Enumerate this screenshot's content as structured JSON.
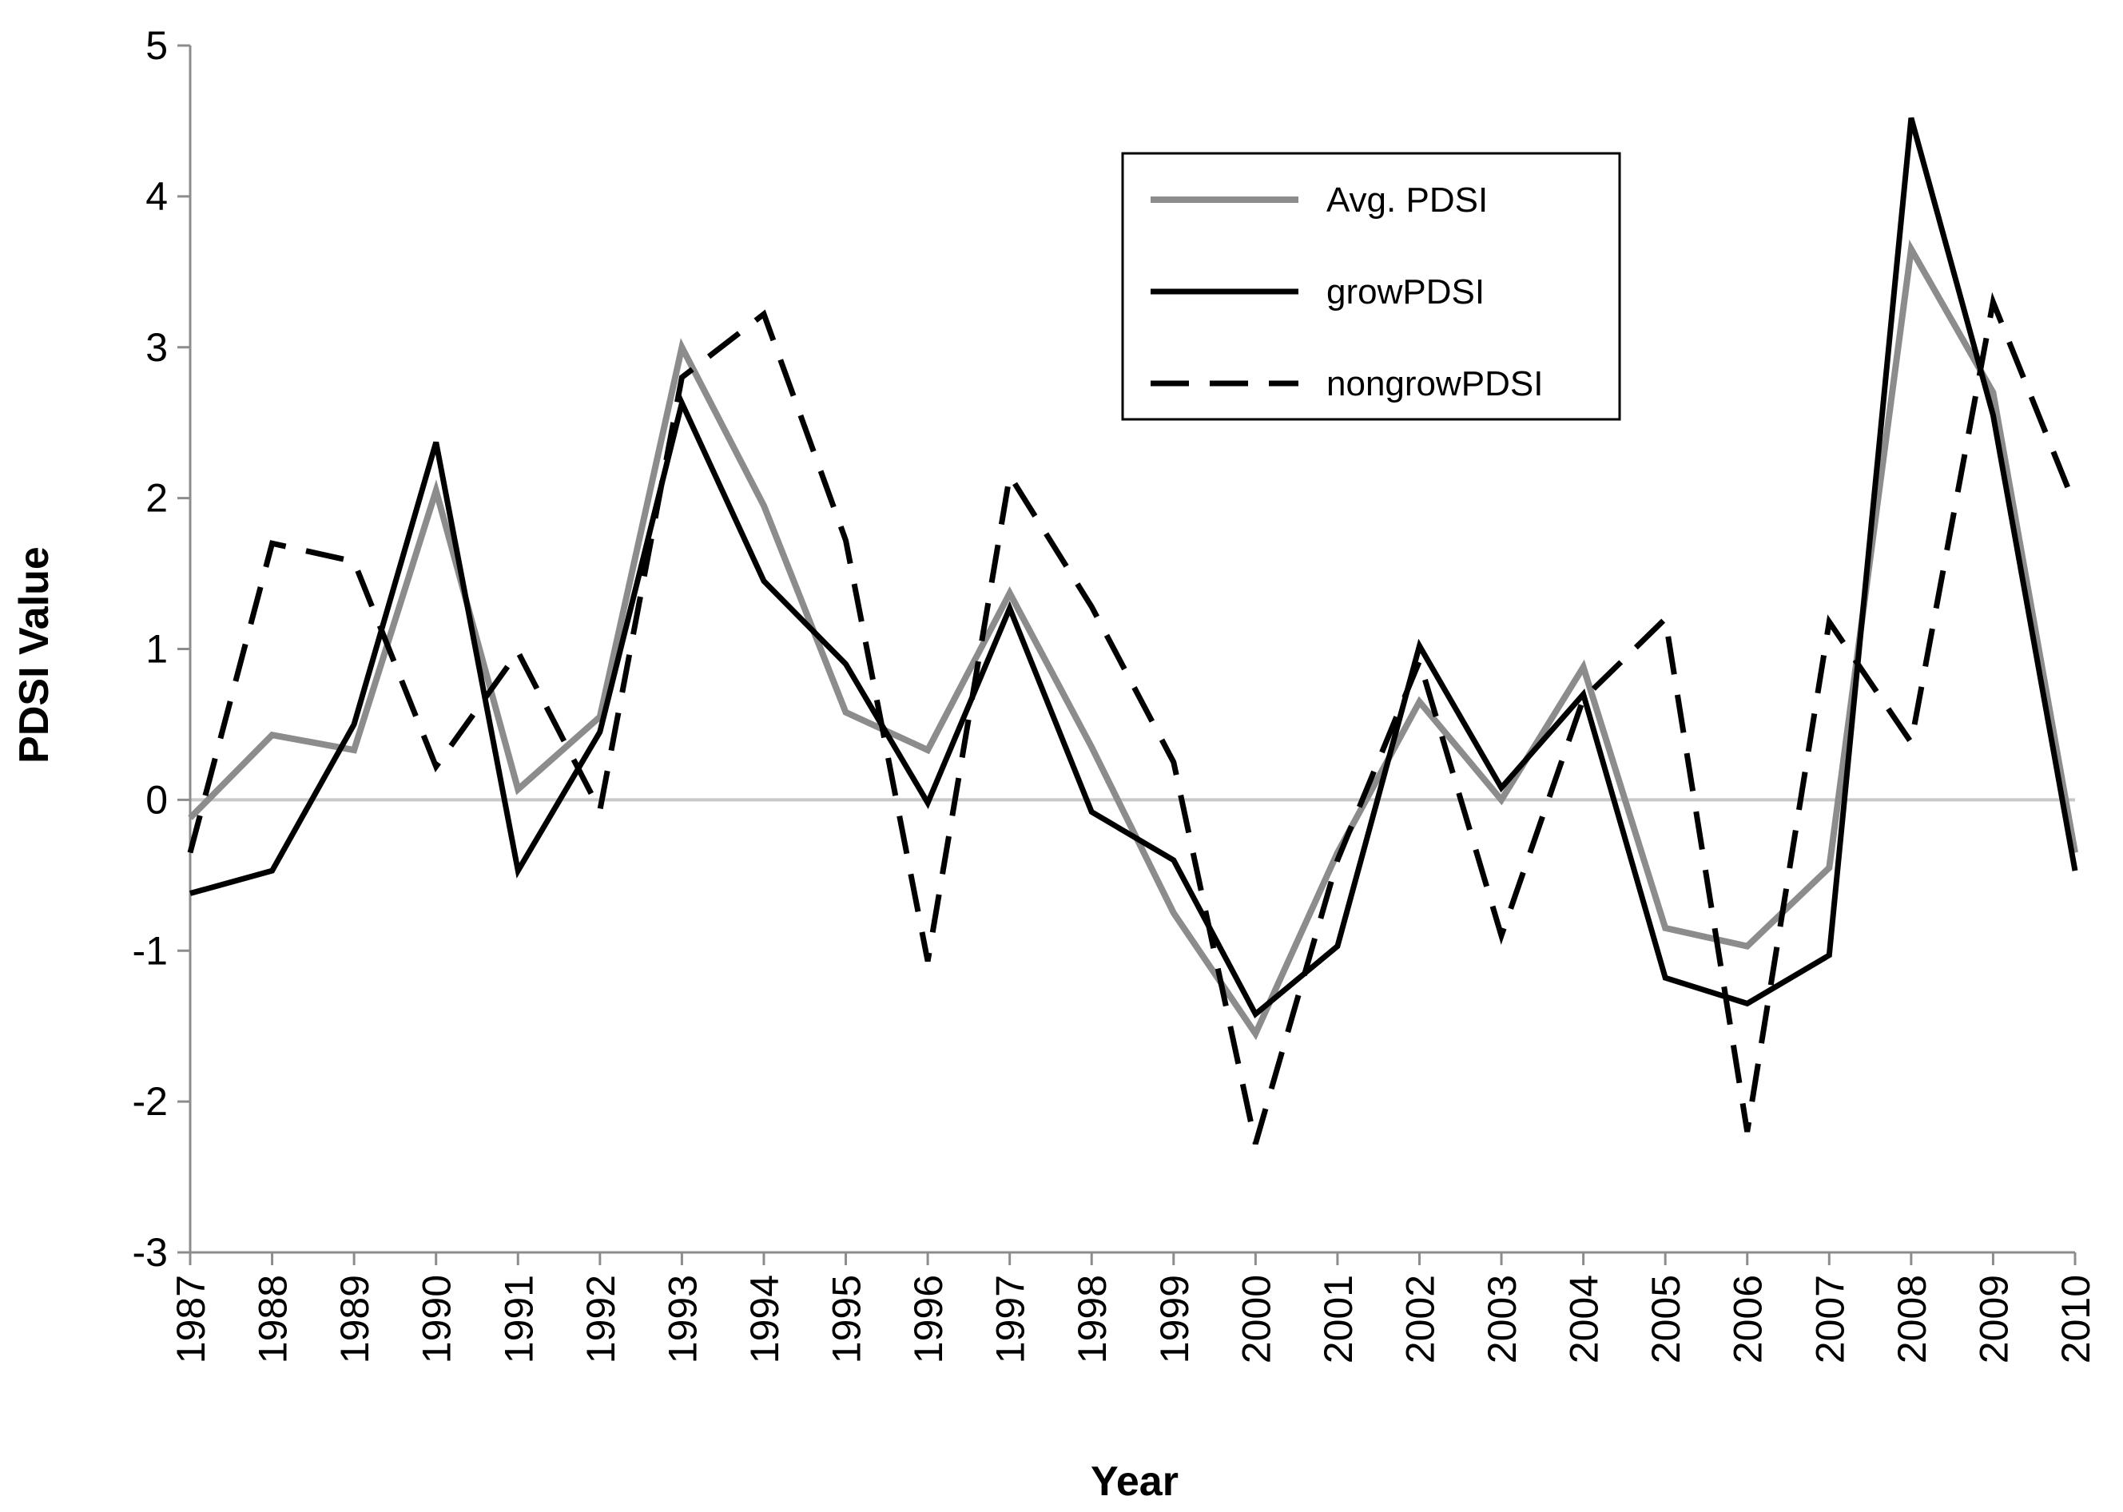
{
  "chart_data": {
    "type": "line",
    "title": "",
    "xlabel": "Year",
    "ylabel": "PDSI Value",
    "ylim": [
      -3,
      5
    ],
    "yticks": [
      "-3",
      "-2",
      "-1",
      "0",
      "1",
      "2",
      "3",
      "4",
      "5"
    ],
    "categories": [
      "1987",
      "1988",
      "1989",
      "1990",
      "1991",
      "1992",
      "1993",
      "1994",
      "1995",
      "1996",
      "1997",
      "1998",
      "1999",
      "2000",
      "2001",
      "2002",
      "2003",
      "2004",
      "2005",
      "2006",
      "2007",
      "2008",
      "2009",
      "2010"
    ],
    "legend_position": "top-right",
    "grid": false,
    "zero_line_color": "#c8c8c8",
    "series": [
      {
        "name": "Avg. PDSI",
        "color": "#8c8c8c",
        "style": "solid",
        "values": [
          -0.12,
          0.43,
          0.33,
          2.05,
          0.07,
          0.55,
          3.0,
          1.95,
          0.58,
          0.33,
          1.37,
          0.35,
          -0.75,
          -1.55,
          -0.35,
          0.65,
          0.0,
          0.88,
          -0.85,
          -0.97,
          -0.45,
          3.65,
          2.7,
          -0.35
        ]
      },
      {
        "name": "growPDSI",
        "color": "#000000",
        "style": "solid",
        "values": [
          -0.62,
          -0.47,
          0.5,
          2.37,
          -0.47,
          0.45,
          2.63,
          1.45,
          0.9,
          -0.02,
          1.27,
          -0.08,
          -0.4,
          -1.42,
          -0.97,
          1.02,
          0.08,
          0.7,
          -1.18,
          -1.35,
          -1.03,
          4.52,
          2.55,
          -0.47
        ]
      },
      {
        "name": "nongrowPDSI",
        "color": "#000000",
        "style": "dashed",
        "values": [
          -0.35,
          1.7,
          1.58,
          0.22,
          0.98,
          -0.07,
          2.8,
          3.22,
          1.72,
          -1.07,
          2.15,
          1.28,
          0.25,
          -2.28,
          -0.4,
          0.92,
          -0.9,
          0.67,
          1.2,
          -2.2,
          1.18,
          0.38,
          3.3,
          1.95
        ]
      }
    ]
  }
}
